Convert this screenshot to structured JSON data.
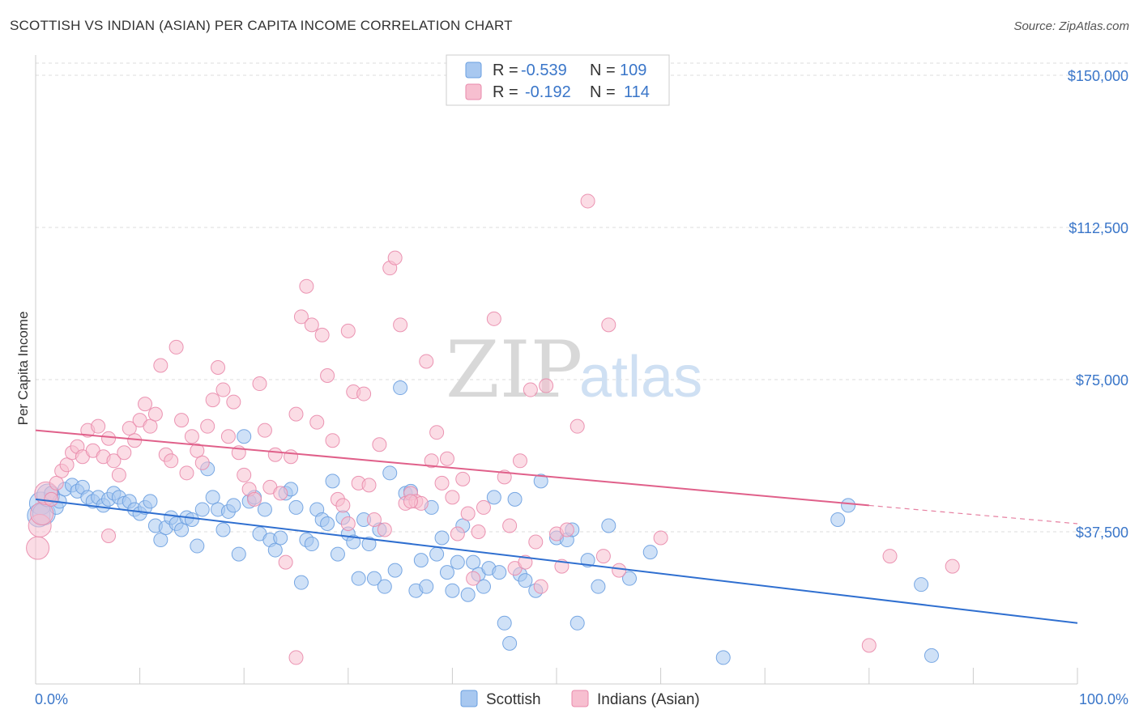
{
  "title": "SCOTTISH VS INDIAN (ASIAN) PER CAPITA INCOME CORRELATION CHART",
  "source": "Source: ZipAtlas.com",
  "watermark": {
    "zip": "ZIP",
    "atlas": "atlas"
  },
  "legend_box": {
    "r_label": "R =",
    "n_label": "N =",
    "rows": [
      {
        "series": "Scottish",
        "r": "-0.539",
        "n": "109",
        "color": "#a8c8f0",
        "stroke": "#6a9fe0"
      },
      {
        "series": "Indians (Asian)",
        "r": "-0.192",
        "n": "114",
        "color": "#f7bfd0",
        "stroke": "#e98aab"
      }
    ]
  },
  "bottom_legend": [
    "Scottish",
    "Indians (Asian)"
  ],
  "chart_data": {
    "type": "scatter",
    "title": "SCOTTISH VS INDIAN (ASIAN) PER CAPITA INCOME CORRELATION CHART",
    "xlabel": "",
    "ylabel": "Per Capita Income",
    "xlim": [
      0,
      100
    ],
    "ylim": [
      0,
      153000
    ],
    "x_tick_labels": [
      "0.0%",
      "100.0%"
    ],
    "y_ticks": [
      37500,
      75000,
      112500,
      150000
    ],
    "y_tick_labels": [
      "$37,500",
      "$75,000",
      "$112,500",
      "$150,000"
    ],
    "grid": true,
    "legend_position": "top-center",
    "series": [
      {
        "name": "Scottish",
        "color": "#a8c8f0",
        "stroke": "#6a9fe0",
        "trend": {
          "x": [
            0,
            100
          ],
          "y": [
            45500,
            15000
          ],
          "color": "#2f6fd0"
        },
        "points": [
          [
            0.3,
            41500
          ],
          [
            0.5,
            44500
          ],
          [
            0.8,
            42000
          ],
          [
            1.2,
            46500
          ],
          [
            1.5,
            47000
          ],
          [
            2,
            43500
          ],
          [
            2.3,
            45000
          ],
          [
            2.8,
            48000
          ],
          [
            3.5,
            49000
          ],
          [
            4,
            47500
          ],
          [
            4.5,
            48500
          ],
          [
            5,
            46000
          ],
          [
            5.5,
            45000
          ],
          [
            6,
            46000
          ],
          [
            6.5,
            44000
          ],
          [
            7,
            45500
          ],
          [
            7.5,
            47000
          ],
          [
            8,
            46000
          ],
          [
            8.5,
            44500
          ],
          [
            9,
            45000
          ],
          [
            9.5,
            43000
          ],
          [
            10,
            42000
          ],
          [
            10.5,
            43500
          ],
          [
            11,
            45000
          ],
          [
            11.5,
            39000
          ],
          [
            12,
            35500
          ],
          [
            12.5,
            38500
          ],
          [
            13,
            41000
          ],
          [
            13.5,
            39500
          ],
          [
            14,
            38000
          ],
          [
            14.5,
            41000
          ],
          [
            15,
            40500
          ],
          [
            15.5,
            34000
          ],
          [
            16,
            43000
          ],
          [
            16.5,
            53000
          ],
          [
            17,
            46000
          ],
          [
            17.5,
            43000
          ],
          [
            18,
            38000
          ],
          [
            18.5,
            42500
          ],
          [
            19,
            44000
          ],
          [
            19.5,
            32000
          ],
          [
            20,
            61000
          ],
          [
            20.5,
            45000
          ],
          [
            21,
            46000
          ],
          [
            21.5,
            37000
          ],
          [
            22,
            43000
          ],
          [
            22.5,
            35500
          ],
          [
            23,
            33000
          ],
          [
            23.5,
            36000
          ],
          [
            24,
            47000
          ],
          [
            24.5,
            48000
          ],
          [
            25,
            43500
          ],
          [
            25.5,
            25000
          ],
          [
            26,
            35500
          ],
          [
            26.5,
            34500
          ],
          [
            27,
            43000
          ],
          [
            27.5,
            40500
          ],
          [
            28,
            39500
          ],
          [
            28.5,
            50000
          ],
          [
            29,
            32000
          ],
          [
            29.5,
            41000
          ],
          [
            30,
            37000
          ],
          [
            30.5,
            35000
          ],
          [
            31,
            26000
          ],
          [
            31.5,
            40500
          ],
          [
            32,
            34500
          ],
          [
            32.5,
            26000
          ],
          [
            33,
            38000
          ],
          [
            33.5,
            24000
          ],
          [
            34,
            52000
          ],
          [
            34.5,
            28000
          ],
          [
            35,
            73000
          ],
          [
            35.5,
            47000
          ],
          [
            36,
            47500
          ],
          [
            36.5,
            23000
          ],
          [
            37,
            30500
          ],
          [
            37.5,
            24000
          ],
          [
            38,
            43500
          ],
          [
            38.5,
            32000
          ],
          [
            39,
            36000
          ],
          [
            39.5,
            27500
          ],
          [
            40,
            23000
          ],
          [
            40.5,
            30000
          ],
          [
            41,
            39000
          ],
          [
            41.5,
            22000
          ],
          [
            42,
            30000
          ],
          [
            42.5,
            27000
          ],
          [
            43,
            24000
          ],
          [
            43.5,
            28500
          ],
          [
            44,
            46000
          ],
          [
            44.5,
            27500
          ],
          [
            45,
            15000
          ],
          [
            45.5,
            10000
          ],
          [
            46,
            45500
          ],
          [
            46.5,
            27000
          ],
          [
            47,
            25500
          ],
          [
            48,
            23000
          ],
          [
            48.5,
            50000
          ],
          [
            50,
            36000
          ],
          [
            51,
            35500
          ],
          [
            51.5,
            38000
          ],
          [
            52,
            15000
          ],
          [
            53,
            30500
          ],
          [
            54,
            24000
          ],
          [
            55,
            39000
          ],
          [
            57,
            26000
          ],
          [
            59,
            32500
          ],
          [
            66,
            6500
          ],
          [
            85,
            24500
          ],
          [
            77,
            40500
          ],
          [
            78,
            44000
          ],
          [
            86,
            7000
          ]
        ]
      },
      {
        "name": "Indians (Asian)",
        "color": "#f7bfd0",
        "stroke": "#e98aab",
        "trend": {
          "x": [
            0,
            80
          ],
          "y": [
            62500,
            44000
          ],
          "dash_to": [
            100,
            39500
          ],
          "color": "#e0608a"
        },
        "points": [
          [
            0.2,
            33500
          ],
          [
            0.4,
            39000
          ],
          [
            0.6,
            42000
          ],
          [
            1,
            47000
          ],
          [
            1.5,
            45500
          ],
          [
            2,
            49500
          ],
          [
            2.5,
            52500
          ],
          [
            3,
            54000
          ],
          [
            3.5,
            57000
          ],
          [
            4,
            58500
          ],
          [
            4.5,
            56000
          ],
          [
            5,
            62500
          ],
          [
            5.5,
            57500
          ],
          [
            6,
            63500
          ],
          [
            6.5,
            56000
          ],
          [
            7,
            60500
          ],
          [
            7.5,
            55000
          ],
          [
            8,
            51500
          ],
          [
            8.5,
            57000
          ],
          [
            9,
            63000
          ],
          [
            9.5,
            60000
          ],
          [
            10,
            65000
          ],
          [
            10.5,
            69000
          ],
          [
            11,
            63500
          ],
          [
            11.5,
            66500
          ],
          [
            12,
            78500
          ],
          [
            12.5,
            56500
          ],
          [
            13,
            55000
          ],
          [
            13.5,
            83000
          ],
          [
            14,
            65000
          ],
          [
            14.5,
            52000
          ],
          [
            15,
            61000
          ],
          [
            15.5,
            57500
          ],
          [
            16,
            54500
          ],
          [
            16.5,
            63500
          ],
          [
            17,
            70000
          ],
          [
            17.5,
            78000
          ],
          [
            18,
            72500
          ],
          [
            18.5,
            61000
          ],
          [
            19,
            69500
          ],
          [
            19.5,
            57000
          ],
          [
            20,
            51500
          ],
          [
            20.5,
            48000
          ],
          [
            21,
            45500
          ],
          [
            21.5,
            74000
          ],
          [
            22,
            62500
          ],
          [
            22.5,
            48500
          ],
          [
            23,
            56500
          ],
          [
            23.5,
            47000
          ],
          [
            24,
            30000
          ],
          [
            24.5,
            56000
          ],
          [
            25,
            66500
          ],
          [
            25.5,
            90500
          ],
          [
            26,
            98000
          ],
          [
            26.5,
            88500
          ],
          [
            27,
            64500
          ],
          [
            27.5,
            86000
          ],
          [
            28,
            76000
          ],
          [
            28.5,
            60000
          ],
          [
            29,
            45500
          ],
          [
            29.5,
            44000
          ],
          [
            30,
            87000
          ],
          [
            30.5,
            72000
          ],
          [
            31,
            49500
          ],
          [
            31.5,
            71500
          ],
          [
            32,
            49000
          ],
          [
            32.5,
            40500
          ],
          [
            33,
            59000
          ],
          [
            33.5,
            38000
          ],
          [
            34,
            102500
          ],
          [
            34.5,
            105000
          ],
          [
            35,
            88500
          ],
          [
            35.5,
            44500
          ],
          [
            36,
            47000
          ],
          [
            36.5,
            45000
          ],
          [
            37,
            44500
          ],
          [
            37.5,
            79500
          ],
          [
            38,
            55000
          ],
          [
            38.5,
            62000
          ],
          [
            39,
            49500
          ],
          [
            39.5,
            55500
          ],
          [
            40,
            46000
          ],
          [
            40.5,
            37000
          ],
          [
            41,
            50500
          ],
          [
            41.5,
            42000
          ],
          [
            42,
            26000
          ],
          [
            42.5,
            37500
          ],
          [
            43,
            43500
          ],
          [
            44,
            90000
          ],
          [
            45,
            51000
          ],
          [
            45.5,
            39000
          ],
          [
            46,
            28500
          ],
          [
            46.5,
            55000
          ],
          [
            47,
            30000
          ],
          [
            47.5,
            72500
          ],
          [
            48,
            35000
          ],
          [
            48.5,
            24000
          ],
          [
            49,
            73500
          ],
          [
            50,
            37000
          ],
          [
            50.5,
            29000
          ],
          [
            51,
            38000
          ],
          [
            52,
            63500
          ],
          [
            53,
            119000
          ],
          [
            54.5,
            31500
          ],
          [
            55,
            88500
          ],
          [
            56,
            28000
          ],
          [
            7,
            36500
          ],
          [
            25,
            6500
          ],
          [
            36,
            45000
          ],
          [
            60,
            36000
          ],
          [
            80,
            9500
          ],
          [
            82,
            31500
          ],
          [
            88,
            29000
          ],
          [
            30,
            39500
          ]
        ]
      }
    ]
  }
}
